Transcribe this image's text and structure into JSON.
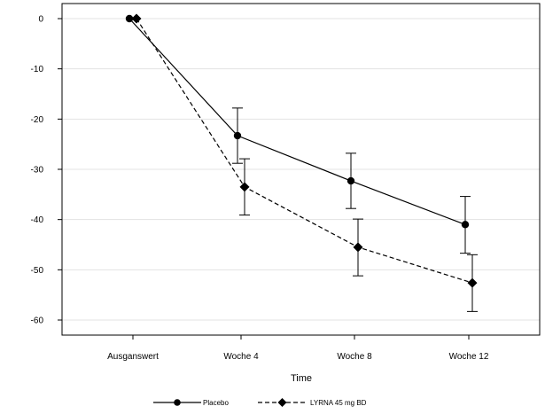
{
  "chart_data": {
    "type": "line",
    "title": "",
    "xlabel": "Time",
    "ylabel": "",
    "categories": [
      "Ausganswert",
      "Woche 4",
      "Woche 8",
      "Woche 12"
    ],
    "ylim": [
      -63,
      3
    ],
    "yticks": [
      0,
      -10,
      -20,
      -30,
      -40,
      -50,
      -60
    ],
    "grid": "horizontal",
    "legend_position": "bottom",
    "series": [
      {
        "name": "Placebo",
        "marker": "circle",
        "line_style": "solid",
        "color": "#000000",
        "values": [
          0,
          -23.3,
          -32.3,
          -41.0
        ],
        "error_low": [
          null,
          -28.8,
          -37.8,
          -46.7
        ],
        "error_high": [
          null,
          -17.8,
          -26.8,
          -35.4
        ]
      },
      {
        "name": "LYRNA 45 mg BD",
        "marker": "diamond",
        "line_style": "dashed",
        "color": "#000000",
        "values": [
          0,
          -33.5,
          -45.5,
          -52.6
        ],
        "error_low": [
          null,
          -39.1,
          -51.2,
          -58.3
        ],
        "error_high": [
          null,
          -27.9,
          -39.9,
          -47.0
        ]
      }
    ]
  }
}
